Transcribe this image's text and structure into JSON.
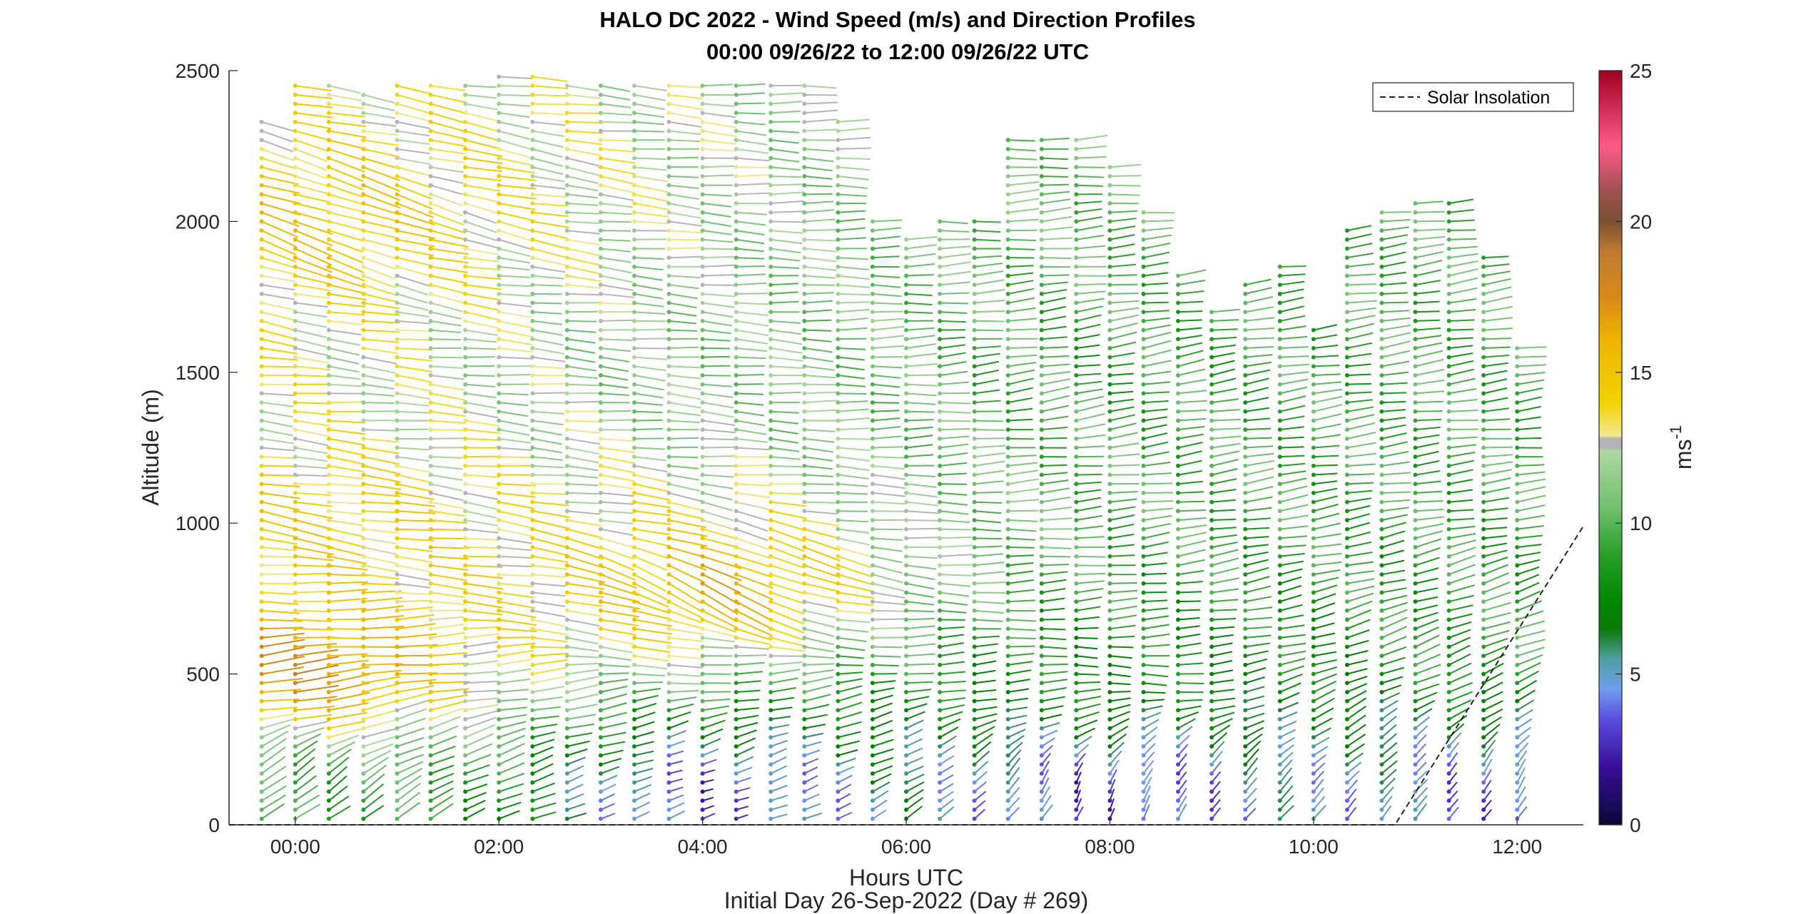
{
  "chart_data": {
    "type": "wind-barb-profile",
    "title": "HALO DC 2022 - Wind Speed (m/s) and Direction Profiles",
    "subtitle": "00:00 09/26/22 to 12:00 09/26/22  UTC",
    "xlabel": "Hours UTC",
    "xlabel2": "Initial Day 26-Sep-2022 (Day # 269)",
    "ylabel": "Altitude (m)",
    "xlim": [
      -0.65,
      12.65
    ],
    "ylim": [
      0,
      2500
    ],
    "xticks": [
      0,
      2,
      4,
      6,
      8,
      10,
      12
    ],
    "xtick_labels": [
      "00:00",
      "02:00",
      "04:00",
      "06:00",
      "08:00",
      "10:00",
      "12:00"
    ],
    "yticks": [
      0,
      500,
      1000,
      1500,
      2000,
      2500
    ],
    "ytick_labels": [
      "0",
      "500",
      "1000",
      "1500",
      "2000",
      "2500"
    ],
    "colorbar": {
      "label": "ms",
      "label_exponent": "-1",
      "range": [
        0,
        25
      ],
      "ticks": [
        0,
        5,
        10,
        15,
        20,
        25
      ],
      "tick_labels": [
        "0",
        "5",
        "10",
        "15",
        "20",
        "25"
      ],
      "colormap": [
        [
          0,
          "#0a0838"
        ],
        [
          2,
          "#3a0f9c"
        ],
        [
          3.5,
          "#5a4fe0"
        ],
        [
          4.5,
          "#6f9cf0"
        ],
        [
          5.5,
          "#4f9fa0"
        ],
        [
          6.5,
          "#0a7a0a"
        ],
        [
          7.5,
          "#008a00"
        ],
        [
          9,
          "#2aa02a"
        ],
        [
          10.5,
          "#6fc06f"
        ],
        [
          12.4,
          "#b0d8a0"
        ],
        [
          12.5,
          "#b4b4b4"
        ],
        [
          12.8,
          "#b4b4b4"
        ],
        [
          12.9,
          "#f2e890"
        ],
        [
          14,
          "#f2d200"
        ],
        [
          16,
          "#f0b400"
        ],
        [
          17.5,
          "#d88a18"
        ],
        [
          19,
          "#c07a30"
        ],
        [
          20,
          "#7a5030"
        ],
        [
          21,
          "#a05050"
        ],
        [
          22.5,
          "#ff5a8a"
        ],
        [
          25,
          "#a00020"
        ]
      ]
    },
    "legend": {
      "entries": [
        "Solar Insolation"
      ],
      "position": "top-right"
    },
    "solar_insolation": {
      "x": [
        -0.65,
        10.8,
        12.65
      ],
      "y": [
        0,
        0,
        990
      ]
    },
    "profile_times": [
      -0.33,
      0,
      0.33,
      0.67,
      1,
      1.33,
      1.67,
      2,
      2.33,
      2.67,
      3,
      3.33,
      3.67,
      4,
      4.33,
      4.67,
      5,
      5.33,
      5.67,
      6,
      6.33,
      6.67,
      7,
      7.33,
      7.67,
      8,
      8.33,
      8.67,
      9,
      9.33,
      9.67,
      10,
      10.33,
      10.67,
      11,
      11.33,
      11.67,
      12
    ],
    "profile_tops_m": [
      2350,
      2470,
      2470,
      2430,
      2470,
      2450,
      2470,
      2500,
      2500,
      2470,
      2470,
      2450,
      2470,
      2470,
      2470,
      2470,
      2470,
      2350,
      2000,
      1960,
      2000,
      2000,
      2290,
      2290,
      2290,
      2200,
      2050,
      1840,
      1700,
      1790,
      1850,
      1650,
      1990,
      2030,
      2080,
      2080,
      1880,
      1590
    ],
    "altitude_step_m": 30,
    "sample_wind_vectors": [
      {
        "time_h": 0,
        "alt_m": 100,
        "speed": 9.0,
        "dir_deg": 230
      },
      {
        "time_h": 0,
        "alt_m": 500,
        "speed": 18.0,
        "dir_deg": 265
      },
      {
        "time_h": 0,
        "alt_m": 1000,
        "speed": 14.5,
        "dir_deg": 280
      },
      {
        "time_h": 0,
        "alt_m": 2000,
        "speed": 15.0,
        "dir_deg": 290
      },
      {
        "time_h": 4,
        "alt_m": 100,
        "speed": 2.5,
        "dir_deg": 250
      },
      {
        "time_h": 4,
        "alt_m": 800,
        "speed": 16.5,
        "dir_deg": 300
      },
      {
        "time_h": 4,
        "alt_m": 1500,
        "speed": 11.0,
        "dir_deg": 275
      },
      {
        "time_h": 8,
        "alt_m": 100,
        "speed": 2.5,
        "dir_deg": 200
      },
      {
        "time_h": 8,
        "alt_m": 500,
        "speed": 8.0,
        "dir_deg": 275
      },
      {
        "time_h": 8,
        "alt_m": 1500,
        "speed": 9.0,
        "dir_deg": 260
      },
      {
        "time_h": 12,
        "alt_m": 100,
        "speed": 3.0,
        "dir_deg": 210
      },
      {
        "time_h": 12,
        "alt_m": 600,
        "speed": 9.5,
        "dir_deg": 250
      },
      {
        "time_h": 12,
        "alt_m": 1200,
        "speed": 9.5,
        "dir_deg": 265
      }
    ]
  }
}
